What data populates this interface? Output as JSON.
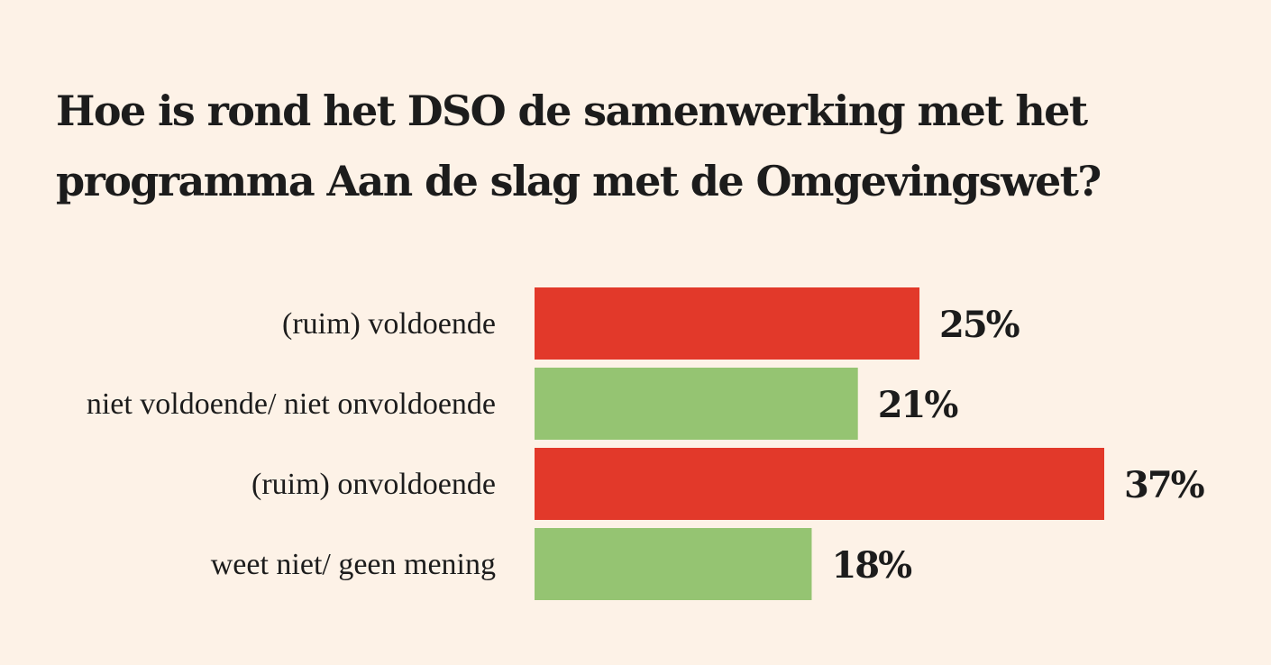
{
  "chart_data": {
    "type": "bar",
    "orientation": "horizontal",
    "title": "Hoe is rond het DSO de samenwerking met het programma Aan de slag met de Omgevingswet?",
    "categories": [
      "(ruim) voldoende",
      "niet voldoende/ niet onvoldoende",
      "(ruim) onvoldoende",
      "weet niet/ geen mening"
    ],
    "values": [
      25,
      21,
      37,
      18
    ],
    "value_labels": [
      "25%",
      "21%",
      "37%",
      "18%"
    ],
    "bar_colors": [
      "#e2392a",
      "#95c472",
      "#e2392a",
      "#95c472"
    ],
    "unit": "%",
    "xlim": [
      0,
      37
    ],
    "grid": false,
    "legend": "none"
  },
  "colors": {
    "background": "#fdf2e7",
    "text": "#1c1c1c"
  }
}
